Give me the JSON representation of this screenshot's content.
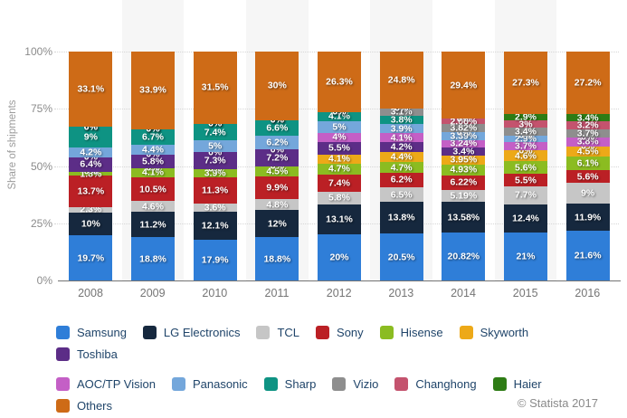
{
  "chart_data": {
    "type": "bar",
    "variant": "stacked-column",
    "title": "",
    "ylabel": "Share of shipments",
    "ylim": [
      0,
      100
    ],
    "y_ticks": [
      "0%",
      "25%",
      "50%",
      "75%",
      "100%"
    ],
    "grid": "dotted-horizontal",
    "legend_position": "bottom",
    "plot_band_color": "#f6f6f6",
    "shaded_categories": [
      "2009",
      "2011",
      "2013",
      "2015"
    ],
    "categories": [
      "2008",
      "2009",
      "2010",
      "2011",
      "2012",
      "2013",
      "2014",
      "2015",
      "2016"
    ],
    "series": [
      {
        "name": "Samsung",
        "color": "#2f7ed8",
        "values": [
          19.7,
          18.8,
          17.9,
          18.8,
          20,
          20.5,
          20.82,
          21,
          21.6
        ]
      },
      {
        "name": "LG Electronics",
        "color": "#16283e",
        "values": [
          10,
          11.2,
          12.1,
          12,
          13.1,
          13.8,
          13.58,
          12.4,
          11.9
        ]
      },
      {
        "name": "TCL",
        "color": "#c6c6c6",
        "values": [
          2.3,
          4.6,
          3.6,
          4.8,
          5.8,
          6.5,
          5.19,
          7.7,
          9
        ]
      },
      {
        "name": "Sony",
        "color": "#bb2025",
        "values": [
          13.7,
          10.5,
          11.3,
          9.9,
          7.4,
          6.2,
          6.22,
          5.5,
          5.6
        ]
      },
      {
        "name": "Hisense",
        "color": "#8bbc21",
        "values": [
          1.8,
          4.1,
          3.9,
          4.5,
          4.7,
          4.7,
          4.93,
          5.6,
          6.1
        ]
      },
      {
        "name": "Skyworth",
        "color": "#eda918",
        "values": [
          0,
          0,
          0,
          0,
          4.1,
          4.4,
          3.95,
          4.6,
          4.5
        ]
      },
      {
        "name": "Toshiba",
        "color": "#5c2d87",
        "values": [
          6.4,
          5.8,
          7.3,
          7.2,
          5.5,
          4.2,
          3.4,
          0,
          0
        ]
      },
      {
        "name": "AOC/TP Vision",
        "color": "#c45fc6",
        "values": [
          0,
          0,
          0,
          0,
          4,
          4.1,
          3.24,
          3.7,
          3.8
        ]
      },
      {
        "name": "Panasonic",
        "color": "#74a7db",
        "values": [
          4.2,
          4.4,
          5,
          6.2,
          5,
          3.9,
          3.39,
          2.9,
          0
        ]
      },
      {
        "name": "Sharp",
        "color": "#0e9383",
        "values": [
          9,
          6.7,
          7.4,
          6.6,
          4.1,
          3.8,
          0,
          0,
          0
        ]
      },
      {
        "name": "Vizio",
        "color": "#8e8e8e",
        "values": [
          0,
          0,
          0,
          0,
          0,
          3.1,
          3.82,
          3.4,
          3.7
        ]
      },
      {
        "name": "Changhong",
        "color": "#c4536e",
        "values": [
          0,
          0,
          0,
          0,
          0,
          0,
          2.06,
          3,
          3.2
        ]
      },
      {
        "name": "Haier",
        "color": "#2e7c15",
        "values": [
          0,
          0,
          0,
          0,
          0,
          0,
          0,
          2.9,
          3.4
        ]
      },
      {
        "name": "Others",
        "color": "#ce6b17",
        "values": [
          33.1,
          33.9,
          31.5,
          30,
          26.3,
          24.8,
          29.4,
          27.3,
          27.2
        ]
      }
    ]
  },
  "footer": {
    "credit": "© Statista 2017"
  }
}
